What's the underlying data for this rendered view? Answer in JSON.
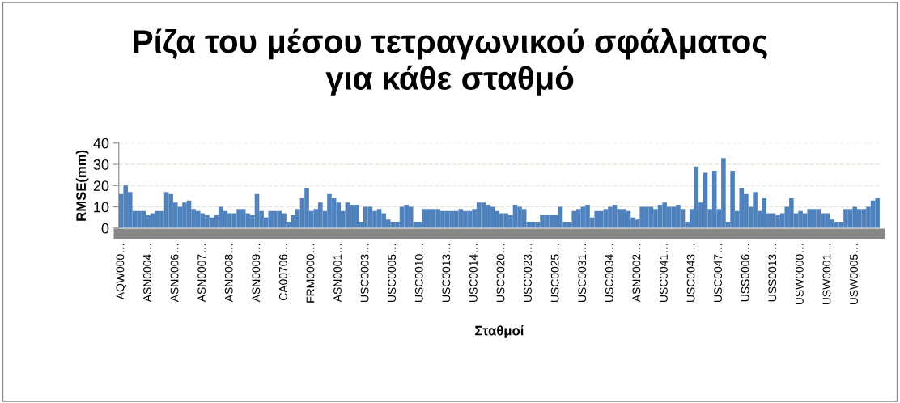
{
  "chart_data": {
    "type": "bar",
    "title": "Ρίζα του μέσου τετραγωνικού σφάλματος\nγια κάθε σταθμό",
    "xlabel": "Σταθμοί",
    "ylabel": "RMSE(mm)",
    "categories": [
      "AQW000…",
      null,
      null,
      null,
      null,
      null,
      "ASN0004…",
      null,
      null,
      null,
      null,
      null,
      "ASN0006…",
      null,
      null,
      null,
      null,
      null,
      "ASN0007…",
      null,
      null,
      null,
      null,
      null,
      "ASN0008…",
      null,
      null,
      null,
      null,
      null,
      "ASN0009…",
      null,
      null,
      null,
      null,
      null,
      "CA00706…",
      null,
      null,
      null,
      null,
      null,
      "FRM0000…",
      null,
      null,
      null,
      null,
      null,
      "ASN0001…",
      null,
      null,
      null,
      null,
      null,
      "USC0003…",
      null,
      null,
      null,
      null,
      null,
      "USC0005…",
      null,
      null,
      null,
      null,
      null,
      "USC0010…",
      null,
      null,
      null,
      null,
      null,
      "USC0013…",
      null,
      null,
      null,
      null,
      null,
      "USC0014…",
      null,
      null,
      null,
      null,
      null,
      "USC0020…",
      null,
      null,
      null,
      null,
      null,
      "USC0023…",
      null,
      null,
      null,
      null,
      null,
      "USC0025…",
      null,
      null,
      null,
      null,
      null,
      "USC0031…",
      null,
      null,
      null,
      null,
      null,
      "USC0034…",
      null,
      null,
      null,
      null,
      null,
      "ASN0002…",
      null,
      null,
      null,
      null,
      null,
      "USC0041…",
      null,
      null,
      null,
      null,
      null,
      "USC0043…",
      null,
      null,
      null,
      null,
      null,
      "USC0047…",
      null,
      null,
      null,
      null,
      null,
      "USS0006…",
      null,
      null,
      null,
      null,
      null,
      "USS0013…",
      null,
      null,
      null,
      null,
      null,
      "USW0000…",
      null,
      null,
      null,
      null,
      null,
      "USW0001…",
      null,
      null,
      null,
      null,
      null,
      "USW0005…",
      null,
      null,
      null,
      null,
      null
    ],
    "values": [
      16,
      20,
      17,
      8,
      8,
      8,
      6,
      7,
      8,
      8,
      17,
      16,
      12,
      10,
      12,
      13,
      9,
      8,
      7,
      6,
      5,
      6,
      10,
      8,
      7,
      7,
      9,
      9,
      7,
      6,
      16,
      8,
      5,
      8,
      8,
      8,
      7,
      3,
      6,
      9,
      14,
      19,
      8,
      9,
      12,
      8,
      16,
      14,
      12,
      8,
      12,
      11,
      11,
      3,
      10,
      10,
      8,
      9,
      7,
      4,
      3,
      3,
      10,
      11,
      10,
      3,
      3,
      9,
      9,
      9,
      9,
      8,
      8,
      8,
      8,
      9,
      8,
      8,
      9,
      12,
      12,
      11,
      10,
      8,
      7,
      7,
      6,
      11,
      10,
      9,
      3,
      3,
      3,
      6,
      6,
      6,
      6,
      10,
      3,
      3,
      8,
      9,
      10,
      11,
      5,
      8,
      8,
      9,
      10,
      11,
      9,
      9,
      8,
      5,
      4,
      10,
      10,
      10,
      9,
      11,
      12,
      10,
      10,
      11,
      9,
      3,
      9,
      29,
      12,
      26,
      9,
      27,
      9,
      33,
      3,
      27,
      8,
      19,
      16,
      10,
      17,
      8,
      14,
      7,
      7,
      6,
      7,
      10,
      14,
      7,
      8,
      7,
      9,
      9,
      9,
      7,
      7,
      4,
      3,
      3,
      9,
      9,
      10,
      9,
      9,
      10,
      13,
      14
    ],
    "color": "#4f81bd",
    "ylim": [
      0,
      40
    ],
    "yticks": [
      0,
      10,
      20,
      30,
      40
    ],
    "grid": "y"
  }
}
